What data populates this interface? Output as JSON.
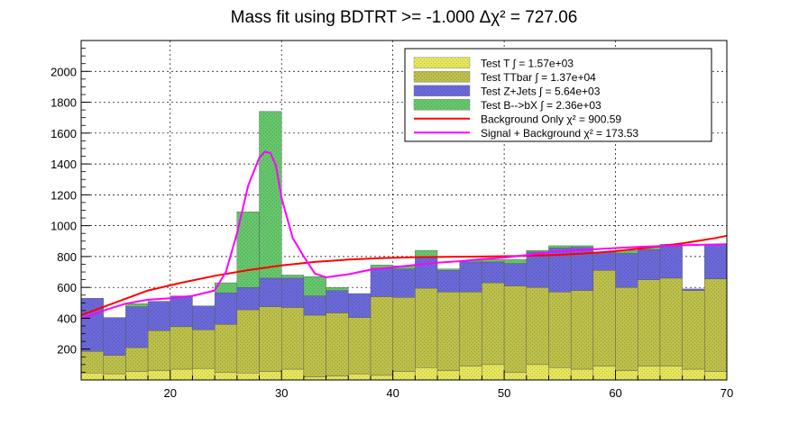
{
  "chart_data": {
    "type": "bar",
    "title": "Mass fit using BDTRT >= -1.000 Δχ² = 727.06",
    "xlim": [
      12,
      70
    ],
    "ylim": [
      0,
      2200
    ],
    "x_ticks": [
      20,
      30,
      40,
      50,
      60,
      70
    ],
    "y_ticks": [
      200,
      400,
      600,
      800,
      1000,
      1200,
      1400,
      1600,
      1800,
      2000
    ],
    "grid": true,
    "bin_edges": [
      12,
      14,
      16,
      18,
      20,
      22,
      24,
      26,
      28,
      30,
      32,
      34,
      36,
      38,
      40,
      42,
      44,
      46,
      48,
      50,
      52,
      54,
      56,
      58,
      60,
      62,
      64,
      66,
      68,
      70
    ],
    "stack": [
      {
        "name": "Test T ∫ = 1.57e+03",
        "color": "#e6e65c",
        "values": [
          45,
          40,
          55,
          60,
          70,
          75,
          50,
          45,
          55,
          70,
          20,
          25,
          40,
          30,
          55,
          80,
          60,
          90,
          100,
          50,
          100,
          80,
          70,
          90,
          60,
          90,
          90,
          70,
          55
        ]
      },
      {
        "name": "Test TTbar ∫ = 1.37e+04",
        "color": "#bcc04a",
        "values": [
          140,
          120,
          155,
          260,
          275,
          250,
          310,
          410,
          420,
          400,
          400,
          410,
          365,
          510,
          480,
          515,
          510,
          480,
          530,
          560,
          500,
          490,
          510,
          620,
          540,
          560,
          570,
          510,
          600
        ]
      },
      {
        "name": "Test Z+Jets ∫ = 5.64e+03",
        "color": "#6b69d8",
        "values": [
          345,
          245,
          265,
          190,
          200,
          155,
          205,
          145,
          185,
          190,
          125,
          145,
          155,
          185,
          185,
          205,
          140,
          195,
          135,
          145,
          230,
          285,
          280,
          120,
          220,
          195,
          210,
          10,
          225
        ]
      },
      {
        "name": "Test B-->bX ∫ = 2.36e+03",
        "color": "#66c66c",
        "values": [
          0,
          0,
          20,
          0,
          0,
          0,
          65,
          490,
          1080,
          20,
          125,
          20,
          0,
          20,
          20,
          40,
          10,
          10,
          15,
          25,
          10,
          15,
          10,
          0,
          20,
          15,
          10,
          0,
          0
        ]
      }
    ],
    "lines": [
      {
        "name": "Background Only χ² = 900.59",
        "color": "#ff0000",
        "x": [
          12,
          15,
          18,
          21,
          24,
          27,
          30,
          33,
          36,
          39,
          42,
          45,
          48,
          51,
          54,
          57,
          60,
          63,
          66,
          69,
          70
        ],
        "y": [
          420,
          500,
          580,
          630,
          675,
          712,
          742,
          765,
          780,
          790,
          796,
          798,
          800,
          803,
          808,
          818,
          835,
          858,
          885,
          920,
          935
        ]
      },
      {
        "name": "Signal + Background χ² = 173.53",
        "color": "#ff00ff",
        "x": [
          12,
          14,
          16,
          18,
          20,
          22,
          24,
          25,
          26,
          27,
          28,
          28.5,
          29,
          29.5,
          30,
          31,
          32,
          33,
          34,
          36,
          38,
          40,
          42,
          44,
          46,
          48,
          50,
          52,
          54,
          56,
          58,
          60,
          62,
          64,
          66,
          68,
          70
        ],
        "y": [
          395,
          450,
          495,
          520,
          530,
          545,
          580,
          700,
          950,
          1260,
          1440,
          1480,
          1470,
          1390,
          1180,
          920,
          800,
          690,
          665,
          685,
          715,
          730,
          745,
          760,
          770,
          783,
          793,
          810,
          828,
          838,
          847,
          855,
          862,
          868,
          873,
          877,
          880
        ]
      }
    ],
    "legend_position": "top-right"
  }
}
